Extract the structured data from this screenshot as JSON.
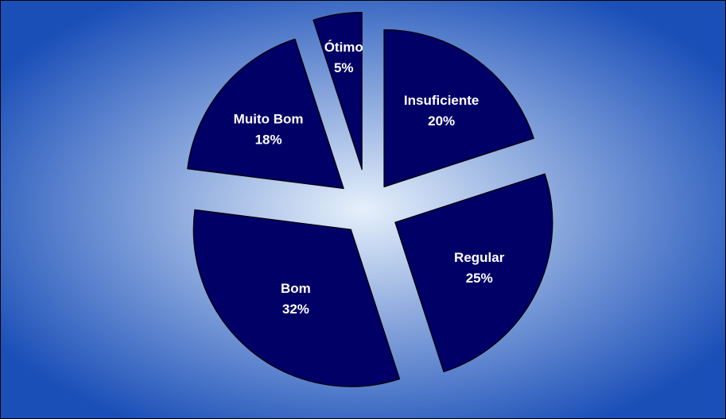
{
  "chart_data": {
    "type": "pie",
    "categories": [
      "Insuficiente",
      "Regular",
      "Bom",
      "Muito Bom",
      "Ótimo"
    ],
    "values": [
      20,
      25,
      32,
      18,
      5
    ],
    "value_labels": [
      "20%",
      "25%",
      "32%",
      "18%",
      "5%"
    ],
    "exploded": true,
    "legend": "none",
    "title": ""
  },
  "colors": {
    "slice_fill": "#000066",
    "label_text": "#ffffff",
    "background_center": "#e6f0fb",
    "background_edge": "#1a4fb8"
  }
}
